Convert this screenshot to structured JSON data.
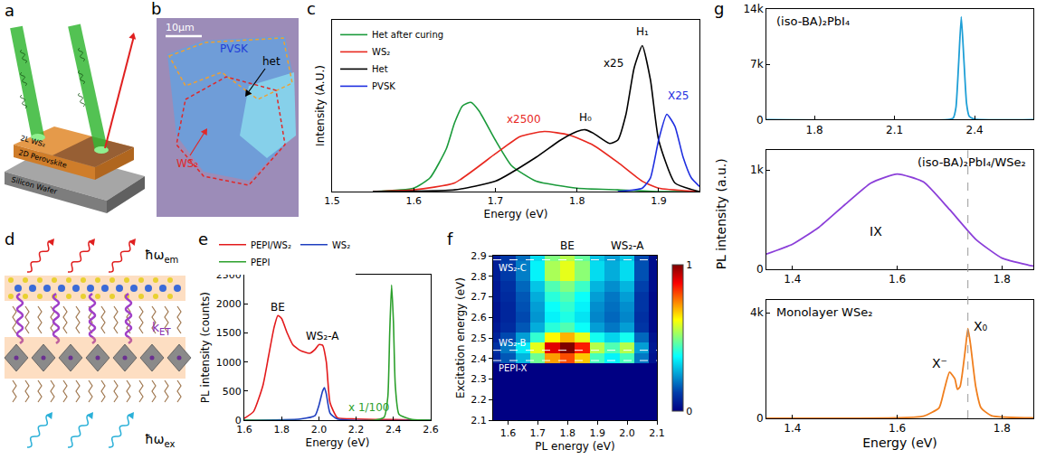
{
  "chart_data": [
    {
      "panel": "c",
      "type": "line",
      "x_label": "Energy (eV)",
      "y_label": "Intensity (A.U.)",
      "xlim": [
        1.5,
        1.95
      ],
      "xticks": [
        1.5,
        1.6,
        1.7,
        1.8,
        1.9
      ],
      "ylim": [
        0,
        1
      ],
      "yticks": [],
      "tick_labels": "x",
      "grid": false,
      "legend": "upper left",
      "series": [
        {
          "name": "Het after curing",
          "color": "#1a9a3a",
          "x": [
            1.55,
            1.6,
            1.62,
            1.64,
            1.65,
            1.66,
            1.67,
            1.68,
            1.7,
            1.72,
            1.75,
            1.8,
            1.85,
            1.9,
            1.95
          ],
          "values": [
            0,
            0.02,
            0.08,
            0.25,
            0.4,
            0.5,
            0.52,
            0.47,
            0.3,
            0.15,
            0.06,
            0.02,
            0.01,
            0,
            0
          ]
        },
        {
          "name": "WS₂",
          "color": "#e8281f",
          "x": [
            1.55,
            1.6,
            1.65,
            1.7,
            1.73,
            1.76,
            1.79,
            1.82,
            1.85,
            1.88,
            1.9,
            1.95
          ],
          "values": [
            0,
            0.01,
            0.05,
            0.22,
            0.32,
            0.35,
            0.33,
            0.27,
            0.17,
            0.06,
            0.02,
            0
          ]
        },
        {
          "name": "Het",
          "color": "#000000",
          "x": [
            1.55,
            1.65,
            1.7,
            1.75,
            1.78,
            1.8,
            1.81,
            1.82,
            1.84,
            1.85,
            1.86,
            1.87,
            1.88,
            1.89,
            1.9,
            1.92,
            1.95
          ],
          "values": [
            0,
            0.01,
            0.06,
            0.2,
            0.3,
            0.35,
            0.36,
            0.34,
            0.28,
            0.3,
            0.45,
            0.72,
            0.85,
            0.65,
            0.3,
            0.05,
            0
          ]
        },
        {
          "name": "PVSK",
          "color": "#1f2fe0",
          "x": [
            1.85,
            1.88,
            1.89,
            1.9,
            1.91,
            1.92,
            1.93,
            1.94,
            1.95
          ],
          "values": [
            0,
            0.02,
            0.08,
            0.3,
            0.45,
            0.38,
            0.2,
            0.08,
            0.03
          ]
        }
      ],
      "annotations": [
        {
          "text": "x2500",
          "x": 1.735,
          "y": 0.42,
          "color": "#e8281f"
        },
        {
          "text": "H₀",
          "x": 1.81,
          "y": 0.43,
          "color": "#000000"
        },
        {
          "text": "x25",
          "x": 1.845,
          "y": 0.75,
          "color": "#000000"
        },
        {
          "text": "H₁",
          "x": 1.88,
          "y": 0.93,
          "color": "#000000"
        },
        {
          "text": "X25",
          "x": 1.925,
          "y": 0.56,
          "color": "#1f2fe0"
        }
      ]
    },
    {
      "panel": "e",
      "type": "line",
      "x_label": "Energy (eV)",
      "y_label": "PL intensity (counts)",
      "xlim": [
        1.6,
        2.6
      ],
      "xticks": [
        1.6,
        1.8,
        {
          "value": 2,
          "label": "2.0"
        },
        2.2,
        2.4,
        2.6
      ],
      "ylim": [
        0,
        2500
      ],
      "yticks": [
        0,
        500,
        1000,
        1500,
        2000,
        2500
      ],
      "grid": false,
      "legend": "top",
      "series": [
        {
          "name": "PEPI/WS₂",
          "color": "#e31a1c",
          "x": [
            1.6,
            1.65,
            1.7,
            1.73,
            1.76,
            1.78,
            1.8,
            1.83,
            1.86,
            1.9,
            1.95,
            1.98,
            2.0,
            2.02,
            2.04,
            2.06,
            2.1,
            2.2,
            2.3,
            2.4,
            2.5,
            2.6
          ],
          "values": [
            30,
            150,
            600,
            1100,
            1600,
            1800,
            1750,
            1500,
            1300,
            1200,
            1150,
            1220,
            1300,
            1290,
            1000,
            300,
            40,
            20,
            10,
            10,
            5,
            0
          ]
        },
        {
          "name": "WS₂",
          "color": "#1f3fbf",
          "x": [
            1.6,
            1.9,
            1.98,
            2.0,
            2.02,
            2.03,
            2.04,
            2.06,
            2.1,
            2.6
          ],
          "values": [
            0,
            20,
            80,
            250,
            500,
            560,
            450,
            120,
            20,
            0
          ]
        },
        {
          "name": "PEPI",
          "color": "#2ca02c",
          "x": [
            1.6,
            2.3,
            2.35,
            2.37,
            2.38,
            2.39,
            2.4,
            2.41,
            2.43,
            2.5,
            2.6
          ],
          "values": [
            0,
            0,
            50,
            400,
            1500,
            2330,
            1700,
            600,
            100,
            10,
            0
          ]
        }
      ],
      "annotations": [
        {
          "text": "BE",
          "x": 1.78,
          "y": 1950,
          "color": "#000000"
        },
        {
          "text": "WS₂-A",
          "x": 2.02,
          "y": 1450,
          "color": "#000000"
        },
        {
          "text": "x 1/100",
          "x": 2.27,
          "y": 220,
          "color": "#2ca02c"
        }
      ]
    },
    {
      "panel": "f",
      "type": "heatmap",
      "x_label": "PL energy (eV)",
      "y_label": "Excitation energy (eV)",
      "xlim": [
        1.55,
        2.1
      ],
      "xticks": [
        1.6,
        1.7,
        1.8,
        1.9,
        {
          "value": 2,
          "label": "2.0"
        },
        2.1
      ],
      "ylim": [
        2.1,
        2.9
      ],
      "yticks": [
        2.1,
        2.2,
        2.3,
        2.4,
        2.5,
        2.6,
        2.7,
        2.8,
        2.9
      ],
      "grid": false,
      "x": [
        1.55,
        1.6,
        1.65,
        1.7,
        1.75,
        1.8,
        1.85,
        1.9,
        1.95,
        2.0,
        2.05,
        2.1
      ],
      "y": [
        2.1,
        2.15,
        2.2,
        2.25,
        2.3,
        2.35,
        2.4,
        2.45,
        2.5,
        2.55,
        2.6,
        2.65,
        2.7,
        2.75,
        2.8,
        2.85,
        2.9
      ],
      "z": [
        [
          0,
          0,
          0,
          0,
          0,
          0,
          0,
          0,
          0,
          0,
          0,
          0
        ],
        [
          0,
          0,
          0,
          0,
          0,
          0,
          0,
          0,
          0,
          0,
          0,
          0
        ],
        [
          0,
          0,
          0,
          0,
          0,
          0,
          0,
          0,
          0,
          0,
          0,
          0
        ],
        [
          0,
          0,
          0,
          0,
          0,
          0,
          0,
          0,
          0,
          0,
          0,
          0
        ],
        [
          0,
          0,
          0,
          0,
          0,
          0,
          0,
          0,
          0,
          0,
          0,
          0
        ],
        [
          0,
          0,
          0,
          0,
          0,
          0,
          0,
          0,
          0,
          0,
          0,
          0
        ],
        [
          0.08,
          0.16,
          0.28,
          0.48,
          0.72,
          0.8,
          0.68,
          0.44,
          0.36,
          0.44,
          0.2,
          0.04
        ],
        [
          0.1,
          0.2,
          0.35,
          0.6,
          0.9,
          1.0,
          0.85,
          0.55,
          0.45,
          0.55,
          0.25,
          0.05
        ],
        [
          0.07,
          0.14,
          0.25,
          0.42,
          0.63,
          0.7,
          0.6,
          0.39,
          0.32,
          0.39,
          0.18,
          0.04
        ],
        [
          0.05,
          0.09,
          0.16,
          0.27,
          0.41,
          0.45,
          0.38,
          0.25,
          0.2,
          0.25,
          0.11,
          0.02
        ],
        [
          0.04,
          0.08,
          0.14,
          0.24,
          0.36,
          0.4,
          0.34,
          0.22,
          0.18,
          0.22,
          0.1,
          0.02
        ],
        [
          0.04,
          0.08,
          0.15,
          0.25,
          0.38,
          0.42,
          0.36,
          0.23,
          0.19,
          0.23,
          0.11,
          0.02
        ],
        [
          0.05,
          0.09,
          0.16,
          0.27,
          0.41,
          0.45,
          0.38,
          0.25,
          0.2,
          0.25,
          0.11,
          0.02
        ],
        [
          0.05,
          0.1,
          0.18,
          0.3,
          0.45,
          0.5,
          0.43,
          0.28,
          0.23,
          0.28,
          0.13,
          0.03
        ],
        [
          0.06,
          0.12,
          0.21,
          0.36,
          0.54,
          0.6,
          0.51,
          0.33,
          0.27,
          0.33,
          0.15,
          0.03
        ],
        [
          0.06,
          0.12,
          0.21,
          0.36,
          0.54,
          0.6,
          0.51,
          0.33,
          0.27,
          0.33,
          0.15,
          0.03
        ],
        [
          0.06,
          0.11,
          0.19,
          0.33,
          0.5,
          0.55,
          0.47,
          0.3,
          0.25,
          0.3,
          0.14,
          0.03
        ]
      ],
      "colorbar": {
        "range": [
          0,
          1
        ],
        "ticks": [
          0,
          1
        ]
      },
      "top_labels": [
        {
          "text": "BE",
          "x": 1.8
        },
        {
          "text": "WS₂-A",
          "x": 2.0
        }
      ],
      "hlines": [
        {
          "text": "WS₂-C",
          "y": 2.88
        },
        {
          "text": "WS₂-B",
          "y": 2.44
        },
        {
          "text": "PEPI-X",
          "y": 2.39
        }
      ]
    },
    {
      "panel": "g",
      "type": "line",
      "x_label": "Energy (eV)",
      "y_label": "PL intensity (a.u.)",
      "grid": false,
      "vline": 1.735,
      "subplots": [
        {
          "title": "(iso-BA)₂PbI₄",
          "color": "#1f9fd6",
          "x": [
            1.62,
            2.3,
            2.32,
            2.33,
            2.34,
            2.35,
            2.36,
            2.37,
            2.38,
            2.4,
            2.62
          ],
          "values": [
            0,
            0,
            200,
            1500,
            7000,
            13000,
            7500,
            2000,
            400,
            50,
            0
          ],
          "xlim": [
            1.62,
            2.62
          ],
          "xticks": [
            1.8,
            2.1,
            2.4
          ],
          "ylim": [
            0,
            14000
          ],
          "yticks": [
            0,
            {
              "value": 7000,
              "label": "7k"
            },
            {
              "value": 14000,
              "label": "14k"
            }
          ],
          "annotations": []
        },
        {
          "title": "(iso-BA)₂PbI₄/WSe₂",
          "color": "#8b3fd9",
          "x": [
            1.35,
            1.4,
            1.45,
            1.5,
            1.55,
            1.6,
            1.65,
            1.7,
            1.75,
            1.8,
            1.85,
            1.86
          ],
          "values": [
            150,
            250,
            420,
            650,
            870,
            960,
            880,
            600,
            300,
            110,
            40,
            30
          ],
          "xlim": [
            1.35,
            1.86
          ],
          "xticks": [
            1.4,
            1.6,
            1.8
          ],
          "ylim": [
            0,
            1200
          ],
          "yticks": [
            0,
            {
              "value": 1000,
              "label": "1k"
            }
          ],
          "annotations": [
            {
              "text": "IX",
              "x": 1.56,
              "y": 380
            }
          ]
        },
        {
          "title": "Monolayer WSe₂",
          "color": "#f07f1e",
          "x": [
            1.35,
            1.6,
            1.65,
            1.68,
            1.69,
            1.7,
            1.71,
            1.715,
            1.72,
            1.73,
            1.735,
            1.74,
            1.75,
            1.76,
            1.78,
            1.86
          ],
          "values": [
            0,
            20,
            80,
            400,
            1100,
            1750,
            1500,
            1100,
            1200,
            2600,
            3400,
            2800,
            1200,
            400,
            100,
            20
          ],
          "xlim": [
            1.35,
            1.86
          ],
          "xticks": [
            1.4,
            1.6,
            1.8
          ],
          "ylim": [
            0,
            4500
          ],
          "yticks": [
            0,
            {
              "value": 4000,
              "label": "4k"
            }
          ],
          "annotations": [
            {
              "text": "X⁻",
              "x": 1.681,
              "y": 2100
            },
            {
              "text": "X₀",
              "x": 1.76,
              "y": 3500
            }
          ]
        }
      ]
    }
  ],
  "diagrams": {
    "a": {
      "panel": "a",
      "top_layer": "2L WS₂",
      "middle_layer": "2D Perovskite",
      "substrate": "Silicon Wafer"
    },
    "b": {
      "panel": "b",
      "scale_bar": "10μm",
      "perovskite": "PVSK",
      "heterostructure": "het",
      "ws2": "WS₂"
    },
    "d": {
      "panel": "d",
      "emission": {
        "text": "ħω",
        "sub": "em"
      },
      "transfer": {
        "text": "k",
        "sub": "ET"
      },
      "excitation": {
        "text": "ħω",
        "sub": "ex"
      }
    }
  }
}
